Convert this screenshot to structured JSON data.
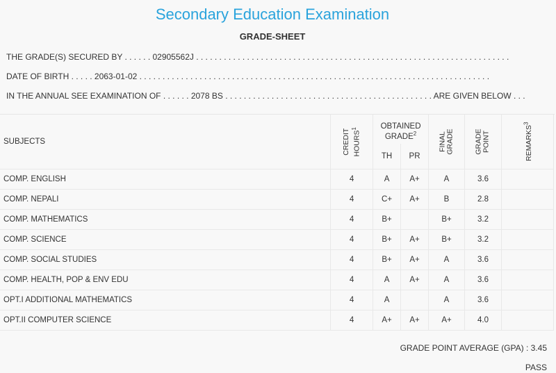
{
  "header": {
    "title": "Secondary Education Examination",
    "subtitle": "GRADE-SHEET"
  },
  "info": {
    "secured_by": "THE GRADE(S) SECURED BY . . . . . . 02905562J . . . . . . . . . . . . . . . . . . . . . . . . . . . . . . . . . . . . . . . . . . . . . . . . . . . . . . . . . . . . . . . . . . . .",
    "date_of_birth": "DATE OF BIRTH . . . . . 2063-01-02 . . . . . . . . . . . . . . . . . . . . . . . . . . . . . . . . . . . . . . . . . . . . . . . . . . . . . . . . . . . . . . . . . . . . . . . . . . . .",
    "examination": "IN THE ANNUAL SEE EXAMINATION OF . . . . . . 2078 BS . . . . . . . . . . . . . . . . . . . . . . . . . . . . . . . . . . . . . . . . . . . . . ARE GIVEN BELOW . . ."
  },
  "table": {
    "headers": {
      "subjects": "SUBJECTS",
      "credit_hours_l1": "CREDIT",
      "credit_hours_l2": "HOURS",
      "credit_hours_sup": "1",
      "obtained_l1": "OBTAINED",
      "obtained_l2": "GRADE",
      "obtained_sup": "2",
      "th": "TH",
      "pr": "PR",
      "final_l1": "FINAL",
      "final_l2": "GRADE",
      "point_l1": "GRADE",
      "point_l2": "POINT",
      "remarks": "REMARKS",
      "remarks_sup": "3"
    },
    "rows": [
      {
        "subject": "COMP. ENGLISH",
        "credit": "4",
        "th": "A",
        "pr": "A+",
        "final": "A",
        "point": "3.6",
        "remarks": ""
      },
      {
        "subject": "COMP. NEPALI",
        "credit": "4",
        "th": "C+",
        "pr": "A+",
        "final": "B",
        "point": "2.8",
        "remarks": ""
      },
      {
        "subject": "COMP. MATHEMATICS",
        "credit": "4",
        "th": "B+",
        "pr": "",
        "final": "B+",
        "point": "3.2",
        "remarks": ""
      },
      {
        "subject": "COMP. SCIENCE",
        "credit": "4",
        "th": "B+",
        "pr": "A+",
        "final": "B+",
        "point": "3.2",
        "remarks": ""
      },
      {
        "subject": "COMP. SOCIAL STUDIES",
        "credit": "4",
        "th": "B+",
        "pr": "A+",
        "final": "A",
        "point": "3.6",
        "remarks": ""
      },
      {
        "subject": "COMP. HEALTH, POP & ENV EDU",
        "credit": "4",
        "th": "A",
        "pr": "A+",
        "final": "A",
        "point": "3.6",
        "remarks": ""
      },
      {
        "subject": "OPT.I ADDITIONAL MATHEMATICS",
        "credit": "4",
        "th": "A",
        "pr": "",
        "final": "A",
        "point": "3.6",
        "remarks": ""
      },
      {
        "subject": "OPT.II COMPUTER SCIENCE",
        "credit": "4",
        "th": "A+",
        "pr": "A+",
        "final": "A+",
        "point": "4.0",
        "remarks": ""
      }
    ]
  },
  "summary": {
    "gpa": "GRADE POINT AVERAGE (GPA) : 3.45",
    "result": "PASS"
  }
}
